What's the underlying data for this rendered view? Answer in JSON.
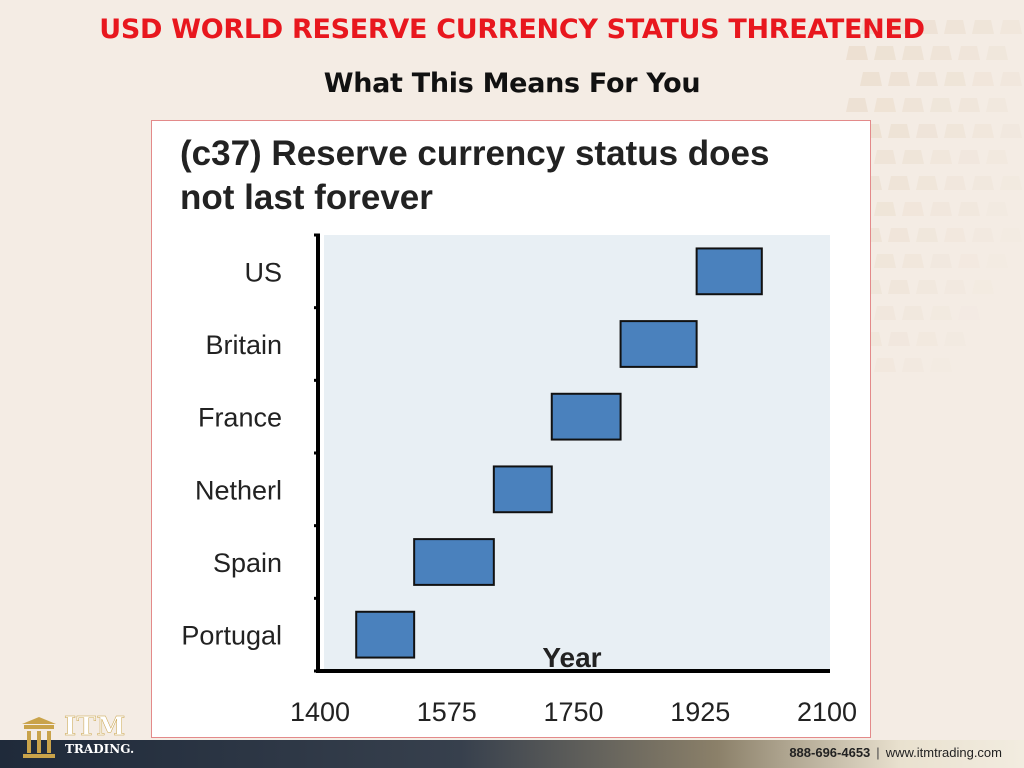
{
  "colors": {
    "title_red": "#e8171e",
    "bar_fill": "#4a81bd",
    "plot_bg": "#e8eff4"
  },
  "slide": {
    "title": "USD WORLD RESERVE CURRENCY STATUS THREATENED",
    "subtitle": "What This Means For You"
  },
  "chart_data": {
    "type": "bar",
    "orientation": "horizontal-floating",
    "title": "(c37) Reserve currency status does not last forever",
    "title_lines": [
      "(c37) Reserve currency status does",
      "not last forever"
    ],
    "xlabel": "Year",
    "ylabel": "",
    "xlim": [
      1400,
      2100
    ],
    "xticks": [
      "1400",
      "1575",
      "1750",
      "1925",
      "2100"
    ],
    "categories": [
      "Portugal",
      "Spain",
      "Netherl",
      "France",
      "Britain",
      "US"
    ],
    "ranges": [
      {
        "name": "Portugal",
        "start": 1450,
        "end": 1530
      },
      {
        "name": "Spain",
        "start": 1530,
        "end": 1640
      },
      {
        "name": "Netherl",
        "start": 1640,
        "end": 1720
      },
      {
        "name": "France",
        "start": 1720,
        "end": 1815
      },
      {
        "name": "Britain",
        "start": 1815,
        "end": 1920
      },
      {
        "name": "US",
        "start": 1920,
        "end": 2010
      }
    ],
    "grid": false,
    "legend": "none"
  },
  "footer": {
    "logo_name": "ITM",
    "logo_sub": "TRADING.",
    "phone": "888-696-4653",
    "separator": "|",
    "website": "www.itmtrading.com"
  },
  "icons": {
    "logo": "column-pillar-icon"
  }
}
